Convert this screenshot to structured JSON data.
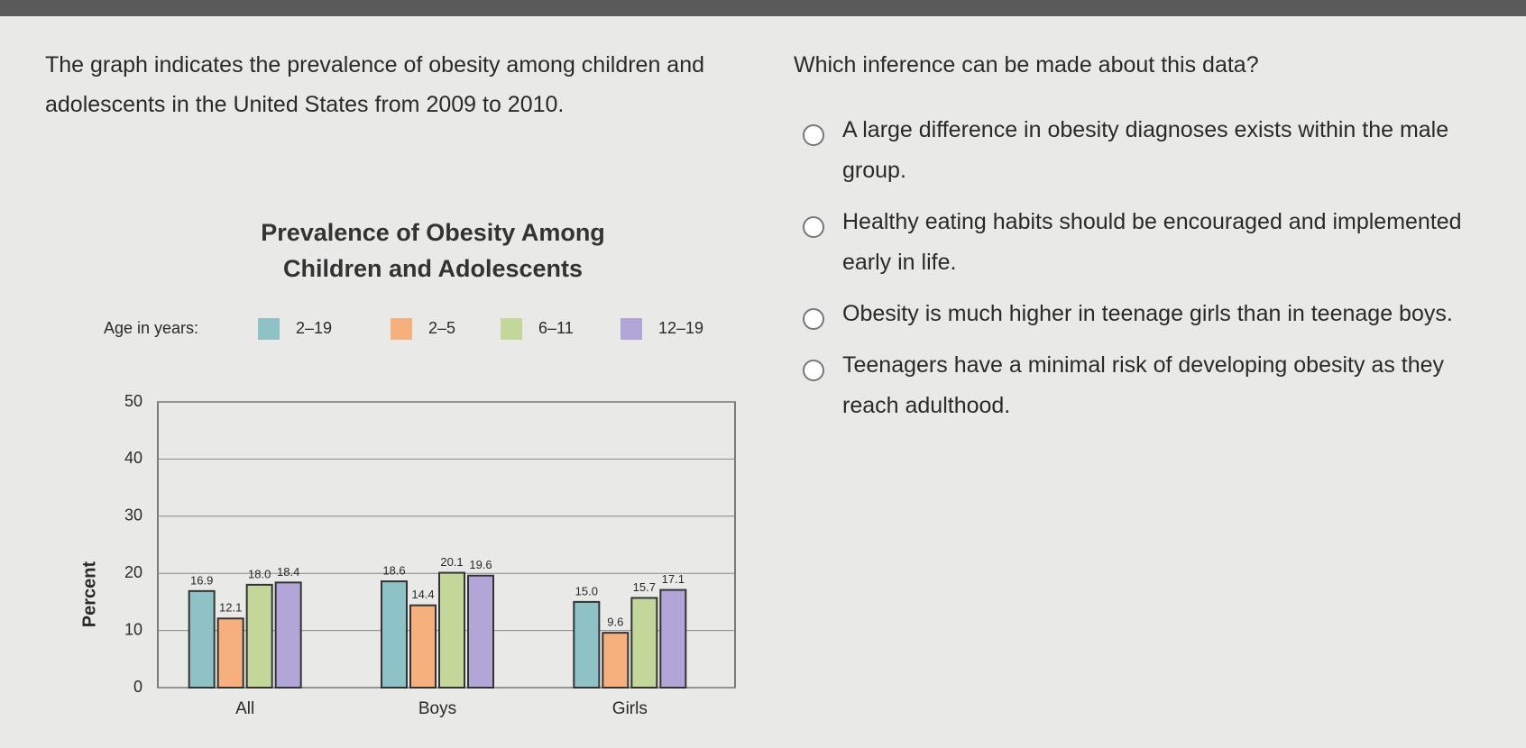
{
  "passage": "The graph indicates the prevalence of obesity among children and adolescents in the United States from 2009 to 2010.",
  "chart_data": {
    "type": "bar",
    "title": [
      "Prevalence of Obesity Among",
      "Children and Adolescents"
    ],
    "legend_title": "Age in years:",
    "y_label": "Percent",
    "categories": [
      "All",
      "Boys",
      "Girls"
    ],
    "series": [
      {
        "name": "2–19",
        "color": "#8fc2c6",
        "values": [
          16.9,
          18.6,
          15.0
        ],
        "value_labels": [
          "16.9",
          "18.6",
          "15.0"
        ]
      },
      {
        "name": "2–5",
        "color": "#f5b07e",
        "values": [
          12.1,
          14.4,
          9.6
        ],
        "value_labels": [
          "12.1",
          "14.4",
          "9.6"
        ]
      },
      {
        "name": "6–11",
        "color": "#c4d79a",
        "values": [
          18.0,
          20.1,
          15.7
        ],
        "value_labels": [
          "18.0",
          "20.1",
          "15.7"
        ]
      },
      {
        "name": "12–19",
        "color": "#b2a6d8",
        "values": [
          18.4,
          19.6,
          17.1
        ],
        "value_labels": [
          "18.4",
          "19.6",
          "17.1"
        ]
      }
    ],
    "ylim": [
      0,
      50
    ],
    "yticks": [
      0,
      10,
      20,
      30,
      40,
      50
    ],
    "grid": true
  },
  "question": "Which inference can be made about this data?",
  "options": [
    "A large difference in obesity diagnoses exists within the male group.",
    "Healthy eating habits should be encouraged and implemented early in life.",
    "Obesity is much higher in teenage girls than in teenage boys.",
    "Teenagers have a minimal risk of developing obesity as they reach adulthood."
  ]
}
